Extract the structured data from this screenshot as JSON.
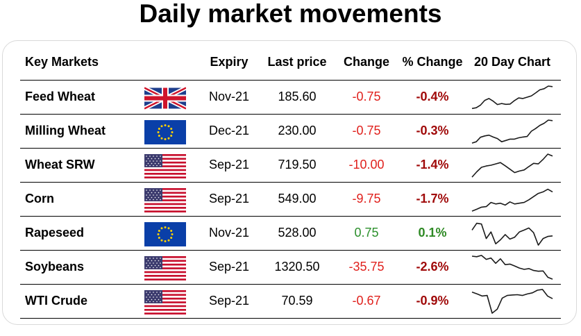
{
  "title": "Daily market movements",
  "headers": {
    "market": "Key Markets",
    "expiry": "Expiry",
    "last_price": "Last price",
    "change": "Change",
    "pct_change": "% Change",
    "chart": "20 Day Chart"
  },
  "colors": {
    "negative_change": "#e0201c",
    "negative_pct": "#a00a0a",
    "positive_change": "#2a8f2a",
    "positive_pct": "#2f8a25",
    "sparkline": "#1a1a1a"
  },
  "rows": [
    {
      "market": "Feed Wheat",
      "flag": "uk-flag",
      "expiry": "Nov-21",
      "last_price": "185.60",
      "change": "-0.75",
      "pct_change": "-0.4%",
      "direction": "down",
      "spark": [
        0.07,
        0.1,
        0.2,
        0.38,
        0.45,
        0.35,
        0.22,
        0.26,
        0.23,
        0.24,
        0.37,
        0.47,
        0.45,
        0.5,
        0.55,
        0.66,
        0.78,
        0.82,
        0.92,
        0.9
      ]
    },
    {
      "market": "Milling Wheat",
      "flag": "eu-flag",
      "expiry": "Dec-21",
      "last_price": "230.00",
      "change": "-0.75",
      "pct_change": "-0.3%",
      "direction": "down",
      "spark": [
        0.05,
        0.1,
        0.27,
        0.32,
        0.35,
        0.28,
        0.22,
        0.1,
        0.15,
        0.2,
        0.2,
        0.25,
        0.28,
        0.3,
        0.5,
        0.6,
        0.72,
        0.8,
        0.92,
        0.9
      ]
    },
    {
      "market": "Wheat SRW",
      "flag": "us-flag",
      "expiry": "Sep-21",
      "last_price": "719.50",
      "change": "-10.00",
      "pct_change": "-1.4%",
      "direction": "down",
      "spark": [
        0.05,
        0.25,
        0.42,
        0.47,
        0.5,
        0.55,
        0.6,
        0.48,
        0.35,
        0.22,
        0.28,
        0.32,
        0.45,
        0.57,
        0.55,
        0.72,
        0.92,
        0.85
      ]
    },
    {
      "market": "Corn",
      "flag": "us-flag",
      "expiry": "Sep-21",
      "last_price": "549.00",
      "change": "-9.75",
      "pct_change": "-1.7%",
      "direction": "down",
      "spark": [
        0.05,
        0.12,
        0.2,
        0.22,
        0.38,
        0.32,
        0.35,
        0.28,
        0.4,
        0.32,
        0.35,
        0.38,
        0.48,
        0.6,
        0.72,
        0.78,
        0.88,
        0.78
      ]
    },
    {
      "market": "Rapeseed",
      "flag": "eu-flag",
      "expiry": "Nov-21",
      "last_price": "528.00",
      "change": "0.75",
      "pct_change": "0.1%",
      "direction": "up",
      "spark": [
        0.62,
        0.88,
        0.85,
        0.3,
        0.55,
        0.1,
        0.25,
        0.45,
        0.28,
        0.35,
        0.55,
        0.62,
        0.7,
        0.52,
        0.05,
        0.3,
        0.38,
        0.4
      ]
    },
    {
      "market": "Soybeans",
      "flag": "us-flag",
      "expiry": "Sep-21",
      "last_price": "1320.50",
      "change": "-35.75",
      "pct_change": "-2.6%",
      "direction": "down",
      "spark": [
        0.92,
        0.9,
        0.95,
        0.8,
        0.85,
        0.65,
        0.82,
        0.6,
        0.62,
        0.55,
        0.47,
        0.42,
        0.45,
        0.38,
        0.35,
        0.36,
        0.12,
        0.05
      ]
    },
    {
      "market": "WTI Crude",
      "flag": "us-flag",
      "expiry": "Sep-21",
      "last_price": "70.59",
      "change": "-0.67",
      "pct_change": "-0.9%",
      "direction": "down",
      "spark": [
        0.85,
        0.78,
        0.7,
        0.72,
        0.05,
        0.2,
        0.62,
        0.72,
        0.74,
        0.75,
        0.72,
        0.78,
        0.82,
        0.92,
        0.95,
        0.7,
        0.6
      ]
    }
  ]
}
